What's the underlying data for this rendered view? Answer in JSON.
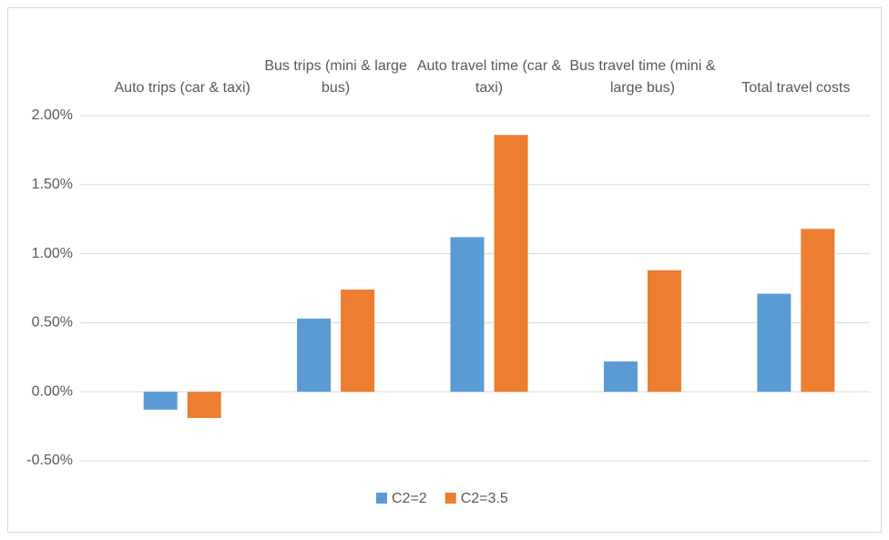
{
  "chart_data": {
    "type": "bar",
    "categories": [
      "Auto trips (car & taxi)",
      "Bus trips (mini & large bus)",
      "Auto travel time (car & taxi)",
      "Bus travel time (mini & large bus)",
      "Total travel costs"
    ],
    "series": [
      {
        "name": "C2=2",
        "color": "#5b9bd5",
        "values": [
          -0.13,
          0.53,
          1.12,
          0.22,
          0.71
        ]
      },
      {
        "name": "C2=3.5",
        "color": "#ed7d31",
        "values": [
          -0.19,
          0.74,
          1.86,
          0.88,
          1.18
        ]
      }
    ],
    "ylim": [
      -0.5,
      2
    ],
    "yticks": [
      {
        "value": -0.5,
        "label": "-0.50%"
      },
      {
        "value": 0,
        "label": "0.00%"
      },
      {
        "value": 0.5,
        "label": "0.50%"
      },
      {
        "value": 1,
        "label": "1.00%"
      },
      {
        "value": 1.5,
        "label": "1.50%"
      },
      {
        "value": 2,
        "label": "2.00%"
      }
    ],
    "grid": true,
    "legend": "bottom"
  }
}
